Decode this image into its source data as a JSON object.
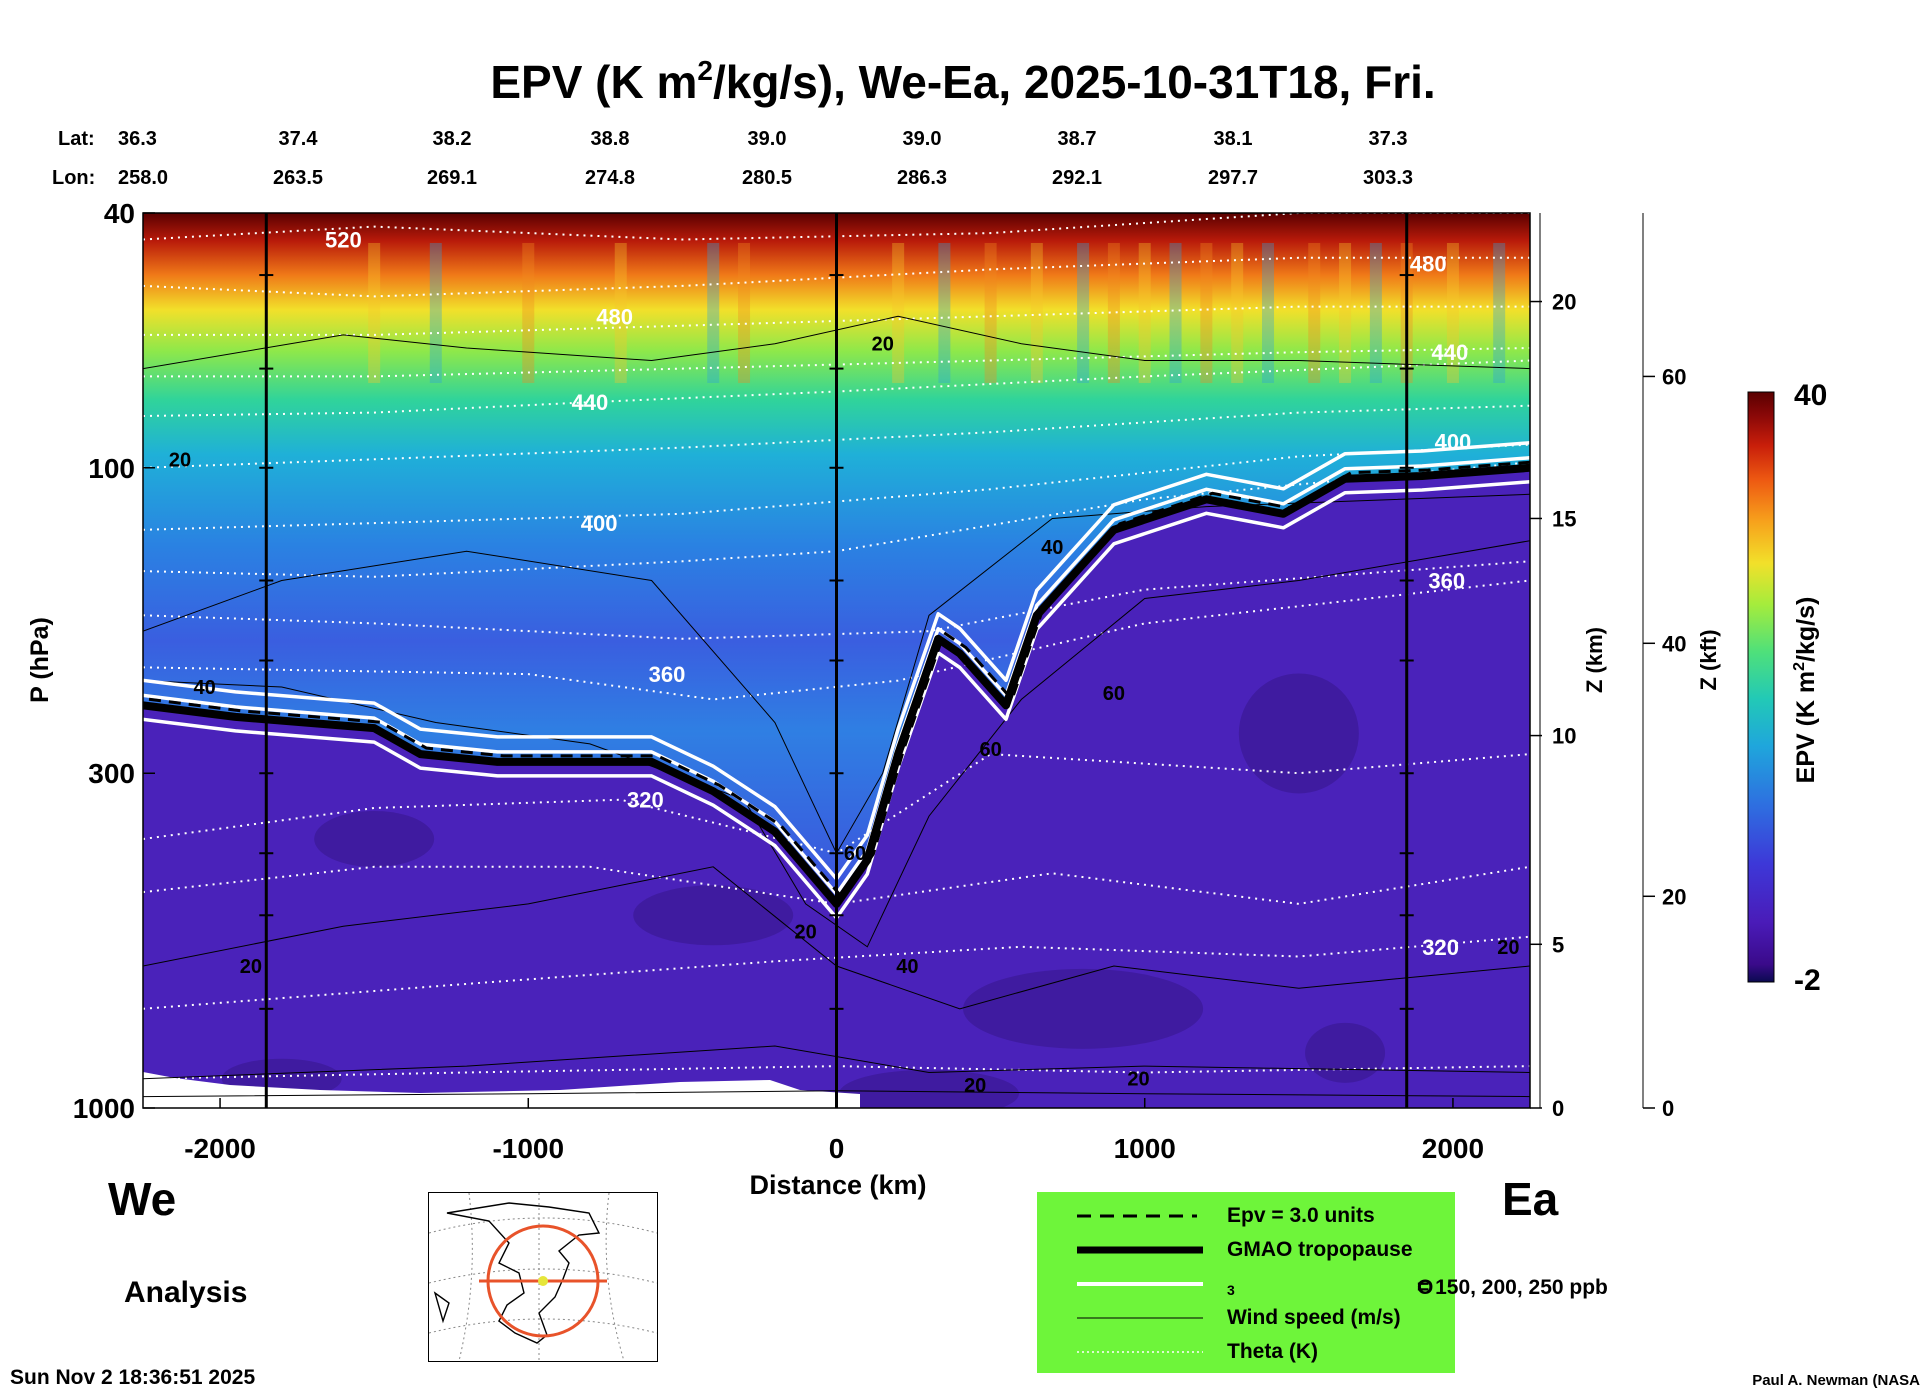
{
  "title": {
    "main_a": "EPV (K m",
    "sup": "2",
    "main_b": "/kg/s), We-Ea, 2025-10-31T18, Fri."
  },
  "latlon": {
    "lat_label": "Lat:",
    "lon_label": "Lon:",
    "lat": [
      "36.3",
      "37.4",
      "38.2",
      "38.8",
      "39.0",
      "39.0",
      "38.7",
      "38.1",
      "37.3"
    ],
    "lon": [
      "258.0",
      "263.5",
      "269.1",
      "274.8",
      "280.5",
      "286.3",
      "292.1",
      "297.7",
      "303.3"
    ]
  },
  "side_labels": {
    "west": "We",
    "east": "Ea",
    "analysis": "Analysis"
  },
  "footer": {
    "timestamp": "Sun Nov  2 18:36:51 2025",
    "credit": "Paul A. Newman (NASA"
  },
  "legend": [
    {
      "label": "Epv = 3.0 units",
      "style": "dashed"
    },
    {
      "label": "GMAO tropopause",
      "style": "thick"
    },
    {
      "label_a": "O",
      "label_sub": "3",
      "label_b": " = 150, 200, 250 ppb",
      "style": "white"
    },
    {
      "label": "Wind speed (m/s)",
      "style": "thin"
    },
    {
      "label": "Theta (K)",
      "style": "dotted-white"
    }
  ],
  "colors": {
    "legend_bg": "#6ef53a",
    "colorbar": [
      "#0a0a50",
      "#3a0a8a",
      "#4a1bb8",
      "#3d38d8",
      "#2e6fe0",
      "#1fa6dc",
      "#22c9b6",
      "#4fe07a",
      "#a5ec3c",
      "#f2e02a",
      "#f7a21c",
      "#ee5a12",
      "#c81e0a",
      "#8a0808",
      "#5a0000"
    ],
    "map_marker": "#e8532a"
  },
  "chart_data": {
    "type": "heatmap",
    "xlabel": "Distance (km)",
    "ylabel": "P (hPa)",
    "ylabel_right_km": "Z (km)",
    "ylabel_right_kft": "Z (kft)",
    "xlim": [
      -2250,
      2250
    ],
    "ylim": [
      1000,
      40
    ],
    "y_scale": "log",
    "x_ticks": [
      -2000,
      -1000,
      0,
      1000,
      2000
    ],
    "x_tick_labels": [
      "-2000",
      "-1000",
      "0",
      "1000",
      "2000"
    ],
    "y_ticks": [
      40,
      100,
      300,
      1000
    ],
    "y_tick_labels": [
      "40",
      "100",
      "300",
      "1000"
    ],
    "z_km_ticks": [
      {
        "p": 1000,
        "label": "0"
      },
      {
        "p": 555,
        "label": "5"
      },
      {
        "p": 262,
        "label": "10"
      },
      {
        "p": 120,
        "label": "15"
      },
      {
        "p": 55,
        "label": "20"
      }
    ],
    "z_kft_ticks": [
      {
        "p": 1000,
        "label": "0"
      },
      {
        "p": 467,
        "label": "20"
      },
      {
        "p": 188,
        "label": "40"
      },
      {
        "p": 72,
        "label": "60"
      }
    ],
    "colorbar": {
      "label": "EPV (K m²/kg/s)",
      "min": -2,
      "max": 40,
      "min_label": "-2",
      "max_label": "40"
    },
    "vertical_markers_km": [
      -1850,
      0,
      1850
    ],
    "tropopause": [
      {
        "x": -2250,
        "p": 235
      },
      {
        "x": -1950,
        "p": 245
      },
      {
        "x": -1500,
        "p": 255
      },
      {
        "x": -1350,
        "p": 280
      },
      {
        "x": -1100,
        "p": 288
      },
      {
        "x": -600,
        "p": 288
      },
      {
        "x": -400,
        "p": 320
      },
      {
        "x": -200,
        "p": 370
      },
      {
        "x": 0,
        "p": 480
      },
      {
        "x": 100,
        "p": 410
      },
      {
        "x": 200,
        "p": 280
      },
      {
        "x": 330,
        "p": 185
      },
      {
        "x": 400,
        "p": 195
      },
      {
        "x": 550,
        "p": 235
      },
      {
        "x": 650,
        "p": 170
      },
      {
        "x": 900,
        "p": 125
      },
      {
        "x": 1200,
        "p": 112
      },
      {
        "x": 1450,
        "p": 118
      },
      {
        "x": 1650,
        "p": 104
      },
      {
        "x": 1900,
        "p": 103
      },
      {
        "x": 2250,
        "p": 100
      }
    ],
    "theta_levels": [
      {
        "label": "520",
        "x": -1600,
        "p": 44
      },
      {
        "label": "480",
        "x": -720,
        "p": 58
      },
      {
        "label": "440",
        "x": -800,
        "p": 79
      },
      {
        "label": "400",
        "x": -770,
        "p": 122
      },
      {
        "label": "360",
        "x": -550,
        "p": 210
      },
      {
        "label": "320",
        "x": -620,
        "p": 330
      },
      {
        "label": "480",
        "x": 1920,
        "p": 48
      },
      {
        "label": "440",
        "x": 1990,
        "p": 66
      },
      {
        "label": "400",
        "x": 2000,
        "p": 91
      },
      {
        "label": "360",
        "x": 1980,
        "p": 150
      },
      {
        "label": "320",
        "x": 1960,
        "p": 560
      }
    ],
    "wind_labels": [
      {
        "label": "20",
        "x": -2130,
        "p": 97
      },
      {
        "label": "40",
        "x": -2050,
        "p": 220
      },
      {
        "label": "20",
        "x": 150,
        "p": 64
      },
      {
        "label": "40",
        "x": 700,
        "p": 133
      },
      {
        "label": "60",
        "x": 900,
        "p": 225
      },
      {
        "label": "60",
        "x": 500,
        "p": 275
      },
      {
        "label": "60",
        "x": 60,
        "p": 400
      },
      {
        "label": "20",
        "x": -100,
        "p": 530
      },
      {
        "label": "40",
        "x": 230,
        "p": 600
      },
      {
        "label": "20",
        "x": -1900,
        "p": 600
      },
      {
        "label": "20",
        "x": 450,
        "p": 920
      },
      {
        "label": "20",
        "x": 980,
        "p": 900
      },
      {
        "label": "20",
        "x": 2180,
        "p": 560
      }
    ]
  }
}
